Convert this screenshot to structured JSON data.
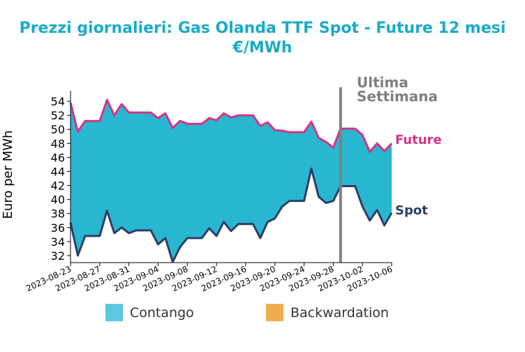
{
  "chart_data": {
    "type": "area",
    "title": "Prezzi giornalieri: Gas Olanda TTF Spot - Future 12 mesi",
    "subtitle": "€/MWh",
    "ylabel": "Euro per MWh",
    "xlabel": "",
    "ylim": [
      31,
      56
    ],
    "xlim": [
      "2023-08-23",
      "2023-10-06"
    ],
    "yticks": [
      32,
      34,
      36,
      38,
      40,
      42,
      44,
      46,
      48,
      50,
      52,
      54
    ],
    "xticks": [
      "2023-08-23",
      "2023-08-27",
      "2023-08-31",
      "2023-09-04",
      "2023-09-08",
      "2023-09-12",
      "2023-09-16",
      "2023-09-20",
      "2023-09-24",
      "2023-09-28",
      "2023-10-02",
      "2023-10-06"
    ],
    "x": [
      "2023-08-23",
      "2023-08-24",
      "2023-08-25",
      "2023-08-26",
      "2023-08-27",
      "2023-08-28",
      "2023-08-29",
      "2023-08-30",
      "2023-08-31",
      "2023-09-01",
      "2023-09-02",
      "2023-09-03",
      "2023-09-04",
      "2023-09-05",
      "2023-09-06",
      "2023-09-07",
      "2023-09-08",
      "2023-09-09",
      "2023-09-10",
      "2023-09-11",
      "2023-09-12",
      "2023-09-13",
      "2023-09-14",
      "2023-09-15",
      "2023-09-16",
      "2023-09-17",
      "2023-09-18",
      "2023-09-19",
      "2023-09-20",
      "2023-09-21",
      "2023-09-22",
      "2023-09-23",
      "2023-09-24",
      "2023-09-25",
      "2023-09-26",
      "2023-09-27",
      "2023-09-28",
      "2023-09-29",
      "2023-09-30",
      "2023-10-01",
      "2023-10-02",
      "2023-10-03",
      "2023-10-04",
      "2023-10-05",
      "2023-10-06"
    ],
    "series": [
      {
        "name": "Future",
        "color": "#d63384",
        "values": [
          53.8,
          49.7,
          51.2,
          51.2,
          51.2,
          54.2,
          52.0,
          53.6,
          52.4,
          52.4,
          52.4,
          52.4,
          51.6,
          52.3,
          50.2,
          51.2,
          50.8,
          50.8,
          50.8,
          51.6,
          51.3,
          52.3,
          51.7,
          52.0,
          52.0,
          52.0,
          50.5,
          51.0,
          49.9,
          49.8,
          49.6,
          49.6,
          49.6,
          51.1,
          48.8,
          48.2,
          47.4,
          50.1,
          50.1,
          50.1,
          49.2,
          46.8,
          48.0,
          46.9,
          48.0
        ]
      },
      {
        "name": "Spot",
        "color": "#2c3e66",
        "values": [
          36.7,
          32.0,
          34.8,
          34.8,
          34.8,
          38.4,
          35.2,
          36.0,
          35.2,
          35.6,
          35.6,
          35.6,
          33.6,
          34.5,
          31.1,
          33.2,
          34.5,
          34.5,
          34.5,
          35.9,
          34.8,
          36.8,
          35.5,
          36.5,
          36.5,
          36.5,
          34.5,
          36.8,
          37.3,
          39.0,
          39.8,
          39.8,
          39.8,
          44.4,
          40.4,
          39.5,
          39.8,
          41.9,
          41.9,
          41.9,
          39.0,
          37.0,
          38.5,
          36.3,
          38.1
        ]
      }
    ],
    "fill_legend": [
      {
        "label": "Contango",
        "color": "#5bc8e0"
      },
      {
        "label": "Backwardation",
        "color": "#f0ad4e"
      }
    ],
    "fill_color": "#29b6d1",
    "annotation": {
      "line1": "Ultima",
      "line2": "Settimana",
      "date": "2023-09-29",
      "color": "#808080"
    },
    "title_color": "#1aabc9"
  }
}
